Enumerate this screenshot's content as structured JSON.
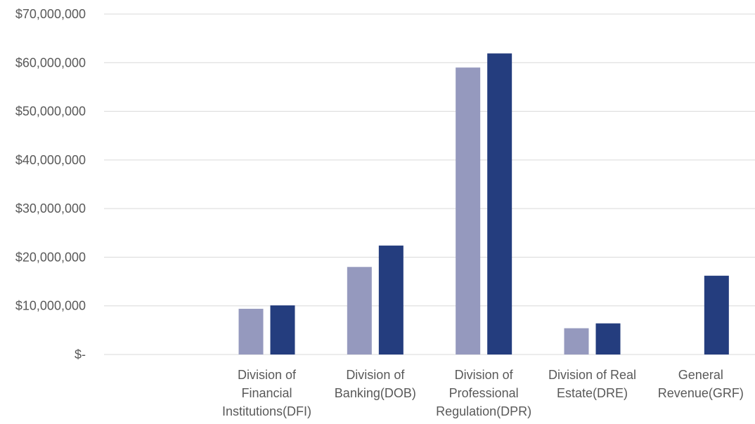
{
  "chart_data": {
    "type": "bar",
    "title": "",
    "xlabel": "",
    "ylabel": "",
    "ylim": [
      0,
      70000000
    ],
    "y_ticks": [
      {
        "value": 0,
        "label": "$-"
      },
      {
        "value": 10000000,
        "label": "$10,000,000"
      },
      {
        "value": 20000000,
        "label": "$20,000,000"
      },
      {
        "value": 30000000,
        "label": "$30,000,000"
      },
      {
        "value": 40000000,
        "label": "$40,000,000"
      },
      {
        "value": 50000000,
        "label": "$50,000,000"
      },
      {
        "value": 60000000,
        "label": "$60,000,000"
      },
      {
        "value": 70000000,
        "label": "$70,000,000"
      }
    ],
    "categories": [
      "",
      "Division of Financial Institutions(DFI)",
      "Division of Banking(DOB)",
      "Division of Professional Regulation(DPR)",
      "Division of Real Estate(DRE)",
      "General Revenue(GRF)"
    ],
    "category_label_lines": [
      [],
      [
        "Division of",
        "Financial",
        "Institutions(DFI)"
      ],
      [
        "Division of",
        "Banking(DOB)"
      ],
      [
        "Division of",
        "Professional",
        "Regulation(DPR)"
      ],
      [
        "Division of Real",
        "Estate(DRE)"
      ],
      [
        "General",
        "Revenue(GRF)"
      ]
    ],
    "series": [
      {
        "color": "#9599be",
        "values": [
          null,
          9400000,
          18000000,
          59000000,
          5400000,
          null
        ]
      },
      {
        "color": "#243d7e",
        "values": [
          null,
          10100000,
          22400000,
          61900000,
          6400000,
          16200000
        ]
      }
    ],
    "grid": true,
    "legend": "none"
  }
}
